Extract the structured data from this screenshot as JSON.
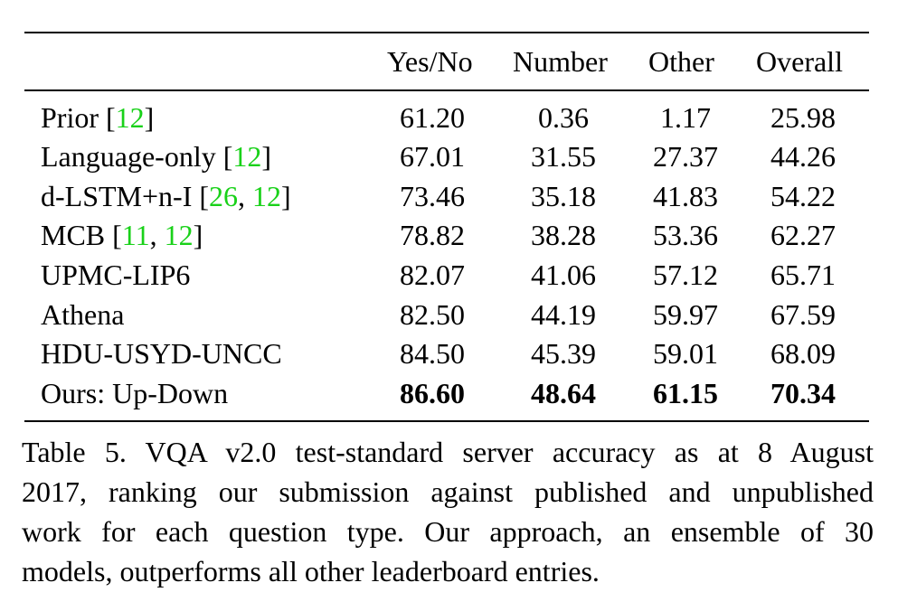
{
  "table": {
    "columns": [
      "Yes/No",
      "Number",
      "Other",
      "Overall"
    ],
    "rows": [
      {
        "method": "Prior ",
        "refs": [
          "12"
        ],
        "values": [
          "61.20",
          "0.36",
          "1.17",
          "25.98"
        ]
      },
      {
        "method": "Language-only ",
        "refs": [
          "12"
        ],
        "values": [
          "67.01",
          "31.55",
          "27.37",
          "44.26"
        ]
      },
      {
        "method": "d-LSTM+n-I ",
        "refs": [
          "26",
          "12"
        ],
        "values": [
          "73.46",
          "35.18",
          "41.83",
          "54.22"
        ]
      },
      {
        "method": "MCB ",
        "refs": [
          "11",
          "12"
        ],
        "values": [
          "78.82",
          "38.28",
          "53.36",
          "62.27"
        ]
      },
      {
        "method": "UPMC-LIP6",
        "refs": [],
        "values": [
          "82.07",
          "41.06",
          "57.12",
          "65.71"
        ]
      },
      {
        "method": "Athena",
        "refs": [],
        "values": [
          "82.50",
          "44.19",
          "59.97",
          "67.59"
        ]
      },
      {
        "method": "HDU-USYD-UNCC",
        "refs": [],
        "values": [
          "84.50",
          "45.39",
          "59.01",
          "68.09"
        ]
      },
      {
        "method": "Ours: Up-Down",
        "refs": [],
        "values": [
          "86.60",
          "48.64",
          "61.15",
          "70.34"
        ]
      }
    ]
  },
  "caption": {
    "lines": [
      "Table 5. VQA v2.0 test-standard server accuracy as at 8 August",
      "2017, ranking our submission against published and unpublished",
      "work for each question type.  Our approach, an ensemble of 30",
      "models, outperforms all other leaderboard entries."
    ]
  },
  "colors": {
    "citation": "#19d119",
    "text": "#000000"
  }
}
